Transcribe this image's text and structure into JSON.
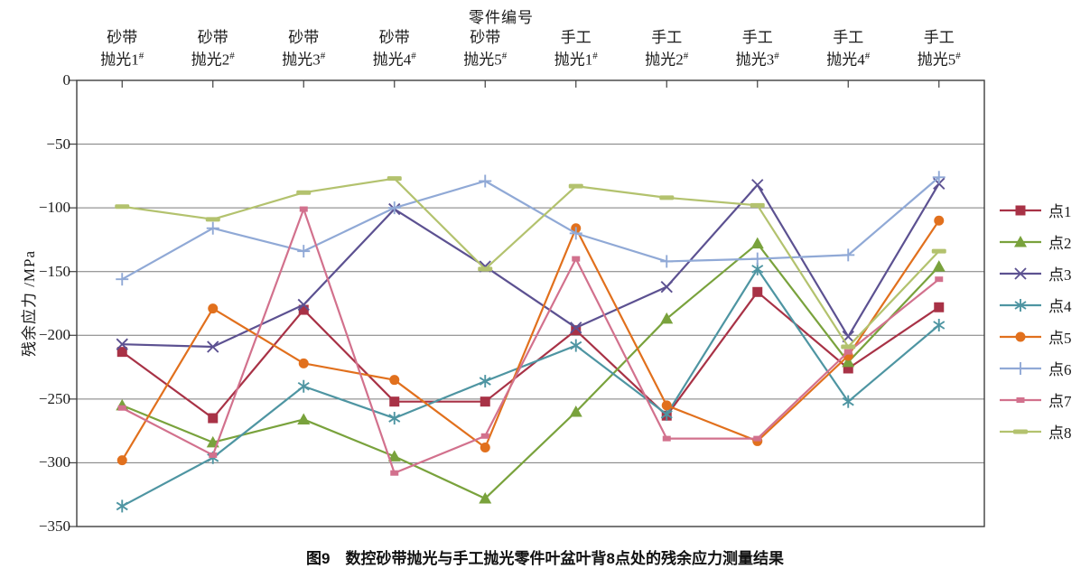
{
  "figure": {
    "caption": "图9　数控砂带抛光与手工抛光零件叶盆叶背8点处的残余应力测量结果"
  },
  "chart_data": {
    "type": "line",
    "title": "",
    "xlabel": "零件编号",
    "xlabel_position": "top",
    "ylabel": "残余应力 /MPa",
    "ylim": [
      -350,
      0
    ],
    "grid": true,
    "legend_position": "right",
    "yticks": [
      0,
      -50,
      -100,
      -150,
      -200,
      -250,
      -300,
      -350
    ],
    "ytick_labels": [
      "0",
      "−50",
      "−100",
      "−150",
      "−200",
      "−250",
      "−300",
      "−350"
    ],
    "categories": [
      {
        "top": "砂带",
        "bottom": "抛光1",
        "sup": "#"
      },
      {
        "top": "砂带",
        "bottom": "抛光2",
        "sup": "#"
      },
      {
        "top": "砂带",
        "bottom": "抛光3",
        "sup": "#"
      },
      {
        "top": "砂带",
        "bottom": "抛光4",
        "sup": "#"
      },
      {
        "top": "砂带",
        "bottom": "抛光5",
        "sup": "#"
      },
      {
        "top": "手工",
        "bottom": "抛光1",
        "sup": "#"
      },
      {
        "top": "手工",
        "bottom": "抛光2",
        "sup": "#"
      },
      {
        "top": "手工",
        "bottom": "抛光3",
        "sup": "#"
      },
      {
        "top": "手工",
        "bottom": "抛光4",
        "sup": "#"
      },
      {
        "top": "手工",
        "bottom": "抛光5",
        "sup": "#"
      }
    ],
    "series": [
      {
        "name": "点1",
        "marker": "square",
        "color": "#A83246",
        "values": [
          -213,
          -265,
          -180,
          -252,
          -252,
          -196,
          -263,
          -166,
          -226,
          -178
        ]
      },
      {
        "name": "点2",
        "marker": "triangle",
        "color": "#79A23C",
        "values": [
          -255,
          -284,
          -266,
          -295,
          -328,
          -260,
          -187,
          -128,
          -221,
          -146
        ]
      },
      {
        "name": "点3",
        "marker": "x",
        "color": "#5C5191",
        "values": [
          -207,
          -209,
          -176,
          -101,
          -146,
          -194,
          -162,
          -82,
          -201,
          -81
        ]
      },
      {
        "name": "点4",
        "marker": "asterisk",
        "color": "#4E95A2",
        "values": [
          -334,
          -296,
          -240,
          -265,
          -236,
          -208,
          -262,
          -148,
          -252,
          -192
        ]
      },
      {
        "name": "点5",
        "marker": "circle",
        "color": "#E1701D",
        "values": [
          -298,
          -179,
          -222,
          -235,
          -288,
          -116,
          -255,
          -283,
          -216,
          -110
        ]
      },
      {
        "name": "点6",
        "marker": "plus",
        "color": "#90A9D6",
        "values": [
          -156,
          -116,
          -134,
          -100,
          -79,
          -120,
          -142,
          -140,
          -137,
          -76
        ]
      },
      {
        "name": "点7",
        "marker": "small-square",
        "color": "#D2718D",
        "values": [
          -257,
          -294,
          -101,
          -308,
          -279,
          -140,
          -281,
          -281,
          -213,
          -156
        ]
      },
      {
        "name": "点8",
        "marker": "dash",
        "color": "#B3C26E",
        "values": [
          -99,
          -109,
          -88,
          -77,
          -148,
          -83,
          -92,
          -98,
          -209,
          -134
        ]
      }
    ]
  }
}
